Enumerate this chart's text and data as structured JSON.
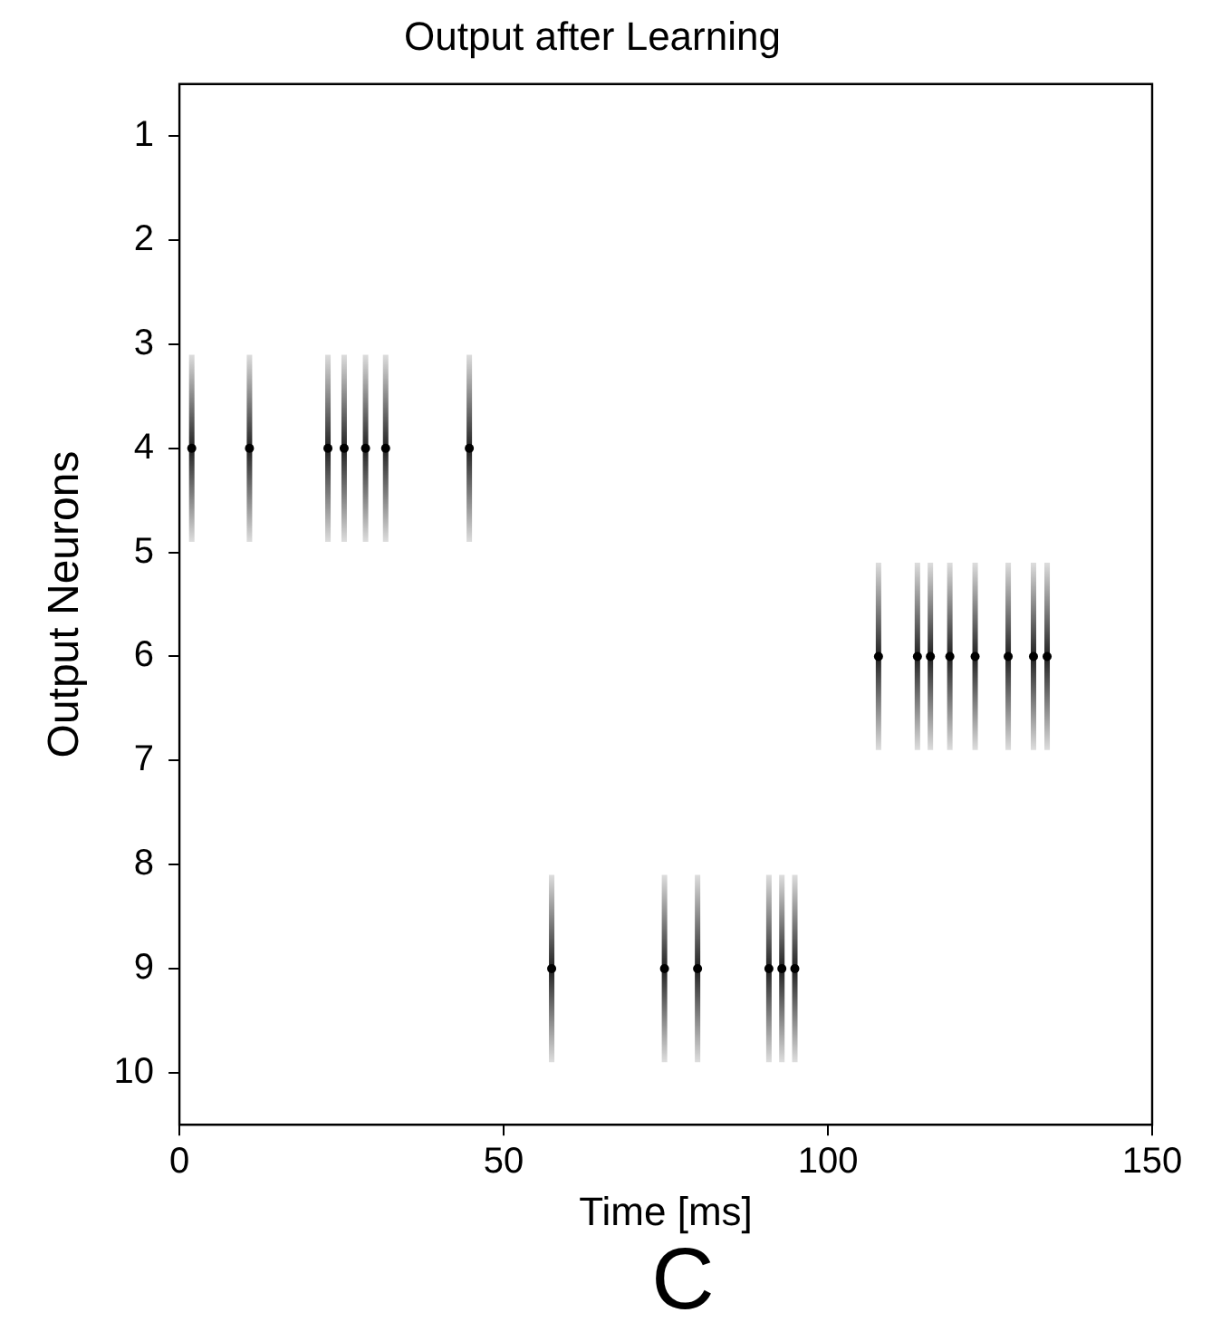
{
  "chart_data": {
    "type": "scatter",
    "title": "Output after Learning",
    "xlabel": "Time [ms]",
    "ylabel": "Output Neurons",
    "annotations": [
      "C"
    ],
    "series": [
      {
        "color": "#000000",
        "x": [
          1.9,
          10.8,
          22.9,
          25.4,
          28.7,
          31.8,
          44.7,
          107.8,
          113.8,
          115.8,
          118.8,
          122.7,
          127.8,
          131.7,
          133.8,
          57.4,
          74.8,
          79.9,
          90.9,
          92.9,
          94.9
        ],
        "values": [
          4,
          4,
          4,
          4,
          4,
          4,
          4,
          6,
          6,
          6,
          6,
          6,
          6,
          6,
          6,
          9,
          9,
          9,
          9,
          9,
          9
        ],
        "errors": [
          0.9,
          0.9,
          0.9,
          0.9,
          0.9,
          0.9,
          0.9,
          0.9,
          0.9,
          0.9,
          0.9,
          0.9,
          0.9,
          0.9,
          0.9,
          0.9,
          0.9,
          0.9,
          0.9,
          0.9,
          0.9
        ]
      }
    ],
    "marker": "circle",
    "xlim": [
      0,
      150
    ],
    "xticks": [
      0,
      50,
      100,
      150
    ],
    "ylim": [
      10.5,
      0.5
    ],
    "yticks": [
      1,
      2,
      3,
      4,
      5,
      6,
      7,
      8,
      9,
      10
    ],
    "grid": false,
    "legend": false
  }
}
